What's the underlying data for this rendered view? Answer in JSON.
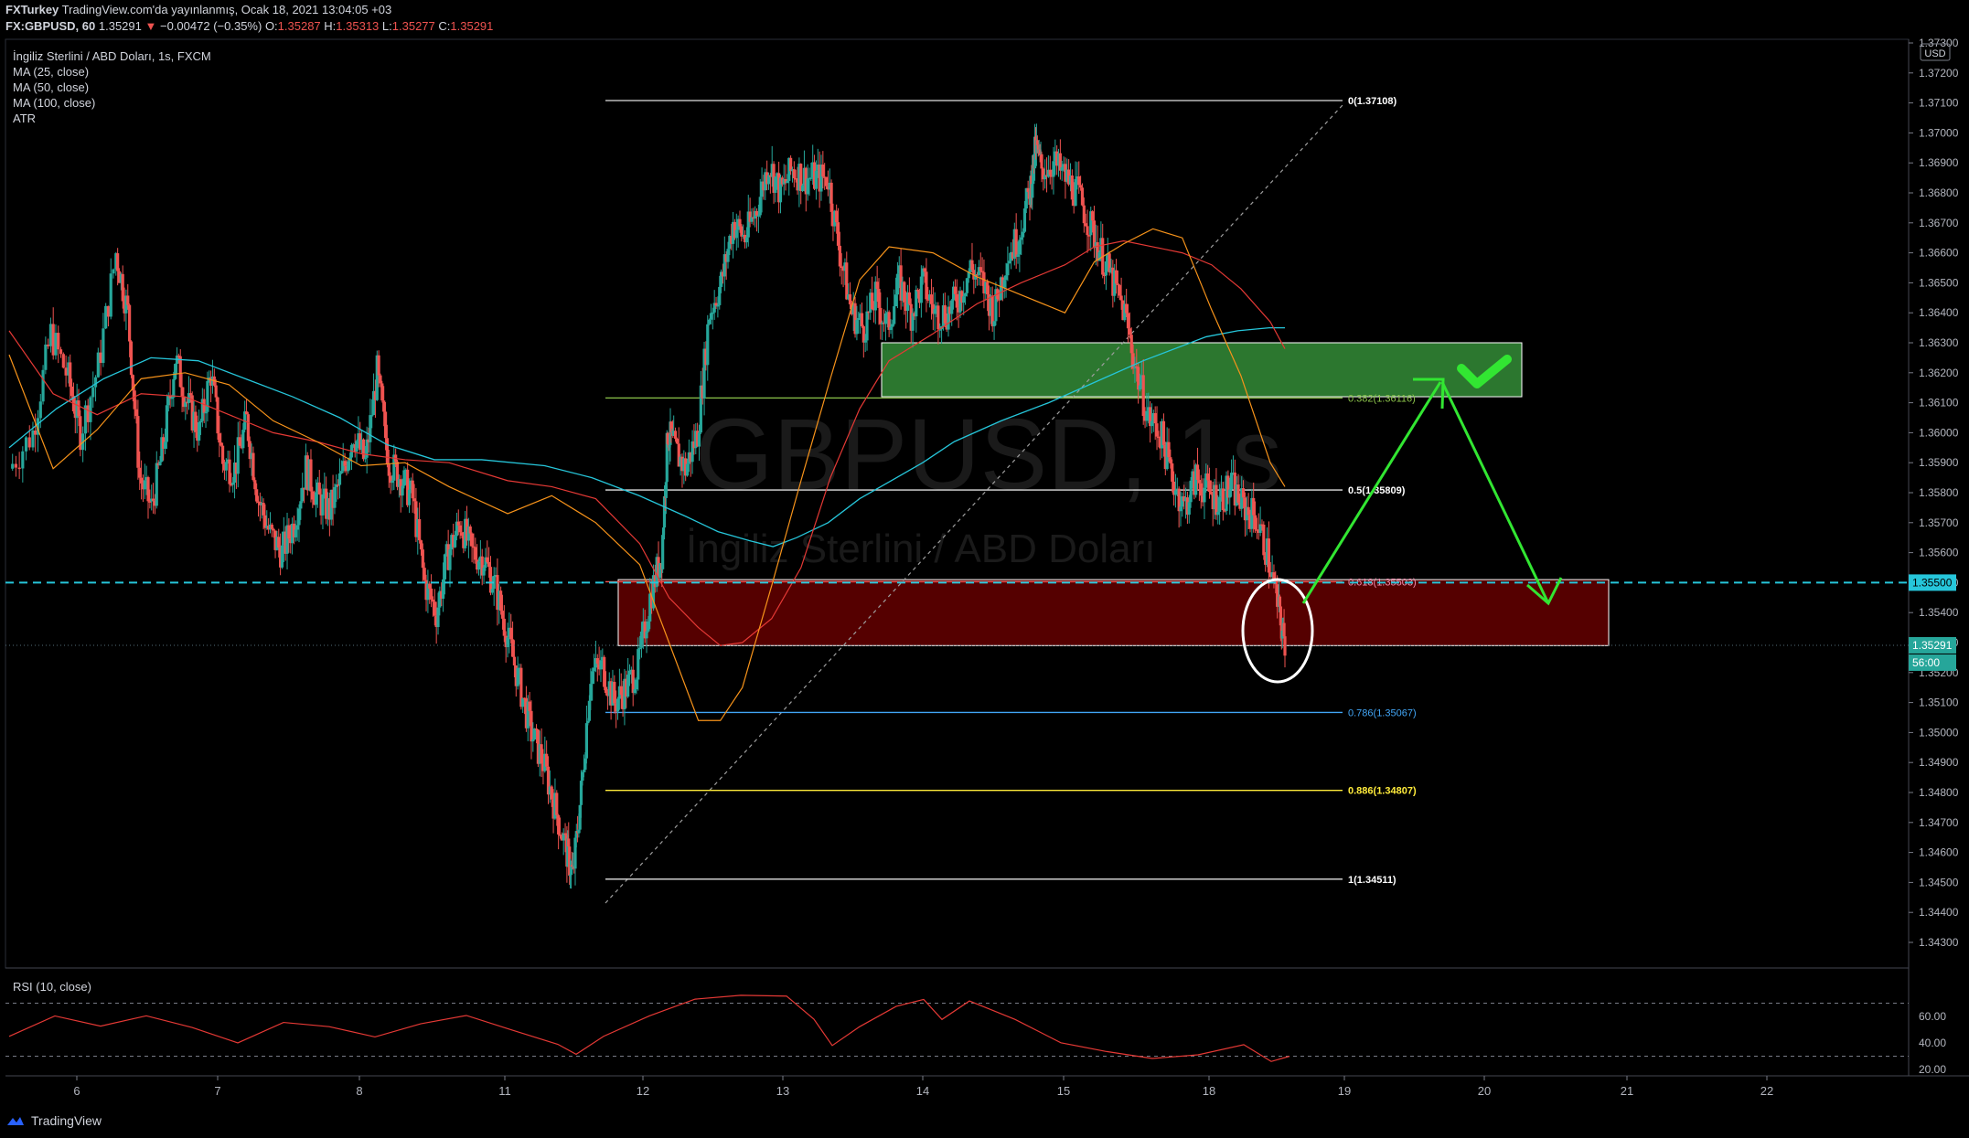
{
  "header": {
    "publisher": "FXTurkey",
    "published_text": "TradingView.com'da yayınlanmış, Ocak 18, 2021 13:04:05 +03",
    "symbol": "FX:GBPUSD, 60",
    "last": "1.35291",
    "change": "−0.00472 (−0.35%)",
    "open_label": "O:",
    "open": "1.35287",
    "high_label": "H:",
    "high": "1.35313",
    "low_label": "L:",
    "low": "1.35277",
    "close_label": "C:",
    "close": "1.35291"
  },
  "legend": {
    "title": "İngiliz Sterlini / ABD Doları, 1s, FXCM",
    "items": [
      "MA (25, close)",
      "MA (50, close)",
      "MA (100, close)",
      "ATR"
    ]
  },
  "watermark": {
    "symbol": "GBPUSD, 1s",
    "name": "İngiliz Sterlini / ABD Doları"
  },
  "currency_badge": "USD",
  "rsi_label": "RSI (10, close)",
  "footer": {
    "brand": "TradingView"
  },
  "colors": {
    "up": "#26a69a",
    "down": "#ef5350",
    "ma25": "#f7931a",
    "ma50": "#e53935",
    "ma100": "#26c6da",
    "fib": "#ffffff",
    "green_zone": "#2e7d32",
    "red_zone": "#5a0000",
    "arrow": "#32e632",
    "price_line": "#26c6da",
    "rsi_line": "#e53935"
  },
  "chart_data": {
    "type": "candlestick",
    "y_axis": {
      "ticks": [
        "1.37300",
        "1.37200",
        "1.37100",
        "1.37000",
        "1.36900",
        "1.36800",
        "1.36700",
        "1.36600",
        "1.36500",
        "1.36400",
        "1.36300",
        "1.36200",
        "1.36100",
        "1.36000",
        "1.35900",
        "1.35800",
        "1.35700",
        "1.35600",
        "1.35500",
        "1.35400",
        "1.35300",
        "1.35200",
        "1.35100",
        "1.35000",
        "1.34900",
        "1.34800",
        "1.34700",
        "1.34600",
        "1.34500",
        "1.34400",
        "1.34300"
      ],
      "range": [
        1.343,
        1.3734
      ]
    },
    "x_axis": {
      "ticks": [
        "6",
        "7",
        "8",
        "11",
        "12",
        "13",
        "14",
        "15",
        "18",
        "19",
        "20",
        "21",
        "22"
      ]
    },
    "current_price": "1.35291",
    "countdown": "56:00",
    "level_label": "1.35500",
    "fibonacci": [
      {
        "ratio": "0",
        "value": "1.37108",
        "text": "0(1.37108)"
      },
      {
        "ratio": "0.382",
        "value": "1.36116",
        "text": "0.382(1.36116)"
      },
      {
        "ratio": "0.5",
        "value": "1.35809",
        "text": "0.5(1.35809)"
      },
      {
        "ratio": "0.618",
        "value": "1.35503",
        "text": "0.618(1.35503)"
      },
      {
        "ratio": "0.786",
        "value": "1.35067",
        "text": "0.786(1.35067)"
      },
      {
        "ratio": "0.886",
        "value": "1.34807",
        "text": "0.886(1.34807)"
      },
      {
        "ratio": "1",
        "value": "1.34511",
        "text": "1(1.34511)"
      }
    ],
    "zones": [
      {
        "name": "green",
        "top": 1.363,
        "bottom": 1.3612
      },
      {
        "name": "red",
        "top": 1.3551,
        "bottom": 1.3529
      }
    ],
    "rsi": {
      "ticks": [
        "60.00",
        "40.00",
        "20.00"
      ],
      "levels": [
        70,
        30
      ]
    },
    "ma25_path": [
      [
        6.0,
        1.3626
      ],
      [
        6.3,
        1.3588
      ],
      [
        6.6,
        1.3601
      ],
      [
        6.9,
        1.3618
      ],
      [
        7.2,
        1.362
      ],
      [
        7.5,
        1.3616
      ],
      [
        7.8,
        1.3604
      ],
      [
        8.1,
        1.3597
      ],
      [
        8.4,
        1.3589
      ],
      [
        8.7,
        1.359
      ],
      [
        9.0,
        1.3582
      ],
      [
        9.4,
        1.3573
      ],
      [
        9.7,
        1.3579
      ],
      [
        10.0,
        1.357
      ],
      [
        10.3,
        1.3556
      ],
      [
        10.5,
        1.353
      ],
      [
        10.7,
        1.3504
      ],
      [
        10.85,
        1.3504
      ],
      [
        11.0,
        1.3515
      ],
      [
        11.2,
        1.3549
      ],
      [
        11.4,
        1.3584
      ],
      [
        11.6,
        1.3618
      ],
      [
        11.8,
        1.3651
      ],
      [
        12.0,
        1.3662
      ],
      [
        12.3,
        1.366
      ],
      [
        12.6,
        1.3652
      ],
      [
        12.9,
        1.3646
      ],
      [
        13.2,
        1.364
      ],
      [
        13.4,
        1.3657
      ],
      [
        13.6,
        1.3663
      ],
      [
        13.8,
        1.3668
      ],
      [
        14.0,
        1.3665
      ],
      [
        14.2,
        1.3641
      ],
      [
        14.4,
        1.3619
      ],
      [
        14.6,
        1.359
      ],
      [
        14.7,
        1.3582
      ]
    ],
    "ma50_path": [
      [
        6.0,
        1.3634
      ],
      [
        6.3,
        1.3613
      ],
      [
        6.6,
        1.3606
      ],
      [
        6.9,
        1.3613
      ],
      [
        7.2,
        1.3612
      ],
      [
        7.5,
        1.3606
      ],
      [
        7.8,
        1.36
      ],
      [
        8.1,
        1.3597
      ],
      [
        8.4,
        1.3593
      ],
      [
        8.7,
        1.3591
      ],
      [
        9.0,
        1.359
      ],
      [
        9.4,
        1.3584
      ],
      [
        9.7,
        1.3582
      ],
      [
        10.0,
        1.3578
      ],
      [
        10.3,
        1.3563
      ],
      [
        10.5,
        1.3545
      ],
      [
        10.7,
        1.3535
      ],
      [
        10.85,
        1.3529
      ],
      [
        11.0,
        1.353
      ],
      [
        11.2,
        1.3538
      ],
      [
        11.4,
        1.3555
      ],
      [
        11.6,
        1.3585
      ],
      [
        11.8,
        1.3608
      ],
      [
        12.0,
        1.3624
      ],
      [
        12.3,
        1.3633
      ],
      [
        12.6,
        1.3643
      ],
      [
        12.9,
        1.365
      ],
      [
        13.2,
        1.3656
      ],
      [
        13.4,
        1.3662
      ],
      [
        13.6,
        1.3664
      ],
      [
        13.8,
        1.3662
      ],
      [
        14.0,
        1.366
      ],
      [
        14.2,
        1.3656
      ],
      [
        14.4,
        1.3648
      ],
      [
        14.6,
        1.3637
      ],
      [
        14.7,
        1.3628
      ]
    ],
    "ma100_path": [
      [
        6.0,
        1.3595
      ],
      [
        6.3,
        1.3608
      ],
      [
        6.6,
        1.3618
      ],
      [
        6.9,
        1.3625
      ],
      [
        7.2,
        1.3624
      ],
      [
        7.5,
        1.3618
      ],
      [
        7.8,
        1.3612
      ],
      [
        8.1,
        1.3605
      ],
      [
        8.4,
        1.3596
      ],
      [
        8.7,
        1.3591
      ],
      [
        9.0,
        1.3591
      ],
      [
        9.4,
        1.3589
      ],
      [
        9.7,
        1.3585
      ],
      [
        10.0,
        1.3579
      ],
      [
        10.3,
        1.3572
      ],
      [
        10.5,
        1.3567
      ],
      [
        10.7,
        1.3564
      ],
      [
        10.85,
        1.3562
      ],
      [
        11.0,
        1.3565
      ],
      [
        11.2,
        1.357
      ],
      [
        11.4,
        1.3578
      ],
      [
        11.6,
        1.3584
      ],
      [
        11.8,
        1.359
      ],
      [
        12.0,
        1.3597
      ],
      [
        12.3,
        1.3604
      ],
      [
        12.6,
        1.361
      ],
      [
        12.9,
        1.3617
      ],
      [
        13.2,
        1.3624
      ],
      [
        13.4,
        1.3628
      ],
      [
        13.6,
        1.3632
      ],
      [
        13.8,
        1.3634
      ],
      [
        14.0,
        1.3635
      ],
      [
        14.1,
        1.3635
      ]
    ]
  }
}
